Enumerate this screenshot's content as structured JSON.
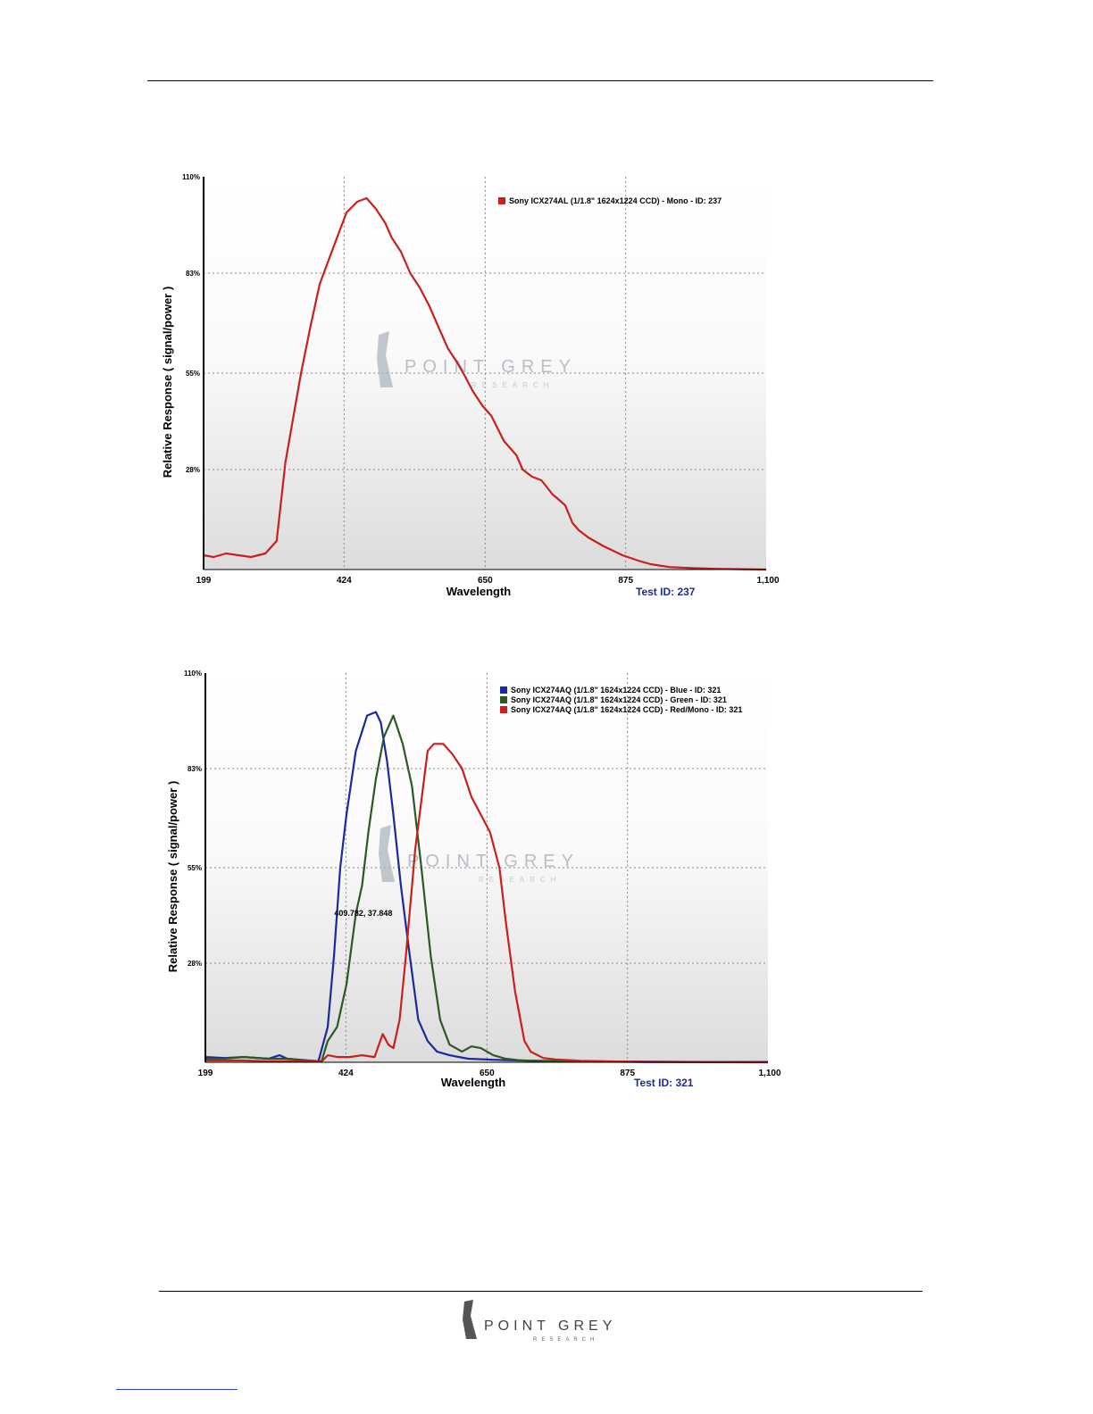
{
  "watermark": {
    "main": "POINT GREY",
    "sub": "RESEARCH"
  },
  "footer": {
    "logo_main": "POINT GREY",
    "logo_sub": "RESEARCH"
  },
  "colors": {
    "red": "#c8201e",
    "blue": "#1a2a9a",
    "green": "#2a5a22",
    "test_id": "#1f2d8c"
  },
  "chart_data": [
    {
      "type": "line",
      "xlabel": "Wavelength",
      "ylabel": "Relative Response ( signal/power )",
      "xlim": [
        199,
        1100
      ],
      "ylim": [
        0,
        110
      ],
      "x_ticks": [
        "199",
        "424",
        "650",
        "875",
        "1,100"
      ],
      "y_ticks": [
        "110%",
        "83%",
        "55%",
        "28%"
      ],
      "test_id_label": "Test ID: 237",
      "legend_position": "top-right",
      "series": [
        {
          "name": "Sony ICX274AL (1/1.8\" 1624x1224 CCD) - Mono - ID: 237",
          "color": "#c8201e",
          "x": [
            199,
            215,
            235,
            275,
            298,
            316,
            330,
            342,
            355,
            370,
            385,
            400,
            415,
            428,
            445,
            460,
            475,
            490,
            500,
            515,
            530,
            545,
            560,
            575,
            590,
            605,
            618,
            630,
            645,
            660,
            680,
            700,
            710,
            725,
            740,
            758,
            765,
            778,
            790,
            800,
            815,
            840,
            870,
            895,
            915,
            945,
            980,
            1020,
            1060,
            1100
          ],
          "y": [
            4,
            3.5,
            4.5,
            3.5,
            4.5,
            8,
            30,
            42,
            55,
            68,
            80,
            87,
            94,
            100,
            103,
            104,
            101,
            97,
            93,
            89,
            83,
            79,
            74,
            68,
            62,
            58,
            54,
            50,
            46,
            43,
            36,
            32,
            28,
            26,
            25,
            21,
            20,
            18,
            13,
            11,
            9,
            6.5,
            4,
            2.5,
            1.5,
            0.7,
            0.4,
            0.2,
            0.1,
            0
          ]
        }
      ]
    },
    {
      "type": "line",
      "xlabel": "Wavelength",
      "ylabel": "Relative Response ( signal/power )",
      "xlim": [
        199,
        1100
      ],
      "ylim": [
        0,
        110
      ],
      "x_ticks": [
        "199",
        "424",
        "650",
        "875",
        "1,100"
      ],
      "y_ticks": [
        "110%",
        "83%",
        "55%",
        "28%"
      ],
      "test_id_label": "Test ID: 321",
      "legend_position": "top-right",
      "annotation": {
        "text": "409.782, 37.848",
        "x": 409.782,
        "y": 37.848
      },
      "series": [
        {
          "name": "Sony ICX274AQ (1/1.8\" 1624x1224 CCD) - Blue  - ID: 321",
          "color": "#1a2a9a",
          "x": [
            199,
            230,
            260,
            300,
            318,
            330,
            380,
            395,
            405,
            415,
            425,
            440,
            458,
            472,
            480,
            490,
            500,
            512,
            525,
            540,
            555,
            570,
            590,
            620,
            660,
            700,
            740,
            800,
            850,
            900,
            1000,
            1100
          ],
          "y": [
            1.5,
            1.2,
            1.5,
            1,
            2,
            1,
            0.3,
            10,
            30,
            55,
            70,
            88,
            98,
            99,
            96,
            85,
            70,
            50,
            32,
            12,
            6,
            3,
            2,
            1,
            0.7,
            0.5,
            0.4,
            0.3,
            0.2,
            0.2,
            0.1,
            0.1
          ]
        },
        {
          "name": "Sony ICX274AQ (1/1.8\" 1624x1224 CCD) - Green  - ID: 321",
          "color": "#2a5a22",
          "x": [
            199,
            230,
            260,
            300,
            330,
            360,
            385,
            395,
            410,
            425,
            440,
            450,
            460,
            472,
            485,
            500,
            515,
            530,
            545,
            560,
            575,
            590,
            610,
            625,
            640,
            660,
            680,
            700,
            720,
            750,
            800,
            900,
            1100
          ],
          "y": [
            1,
            1,
            1.5,
            1,
            1,
            0.5,
            0.3,
            6,
            10,
            22,
            42,
            50,
            65,
            80,
            92,
            98,
            90,
            78,
            55,
            30,
            12,
            5,
            3,
            4.5,
            4,
            2,
            1,
            0.6,
            0.4,
            0.3,
            0.2,
            0.1,
            0
          ]
        },
        {
          "name": "Sony ICX274AQ (1/1.8\" 1624x1224 CCD) - Red/Mono - ID: 321",
          "color": "#c8201e",
          "x": [
            199,
            230,
            260,
            300,
            330,
            360,
            385,
            395,
            410,
            430,
            450,
            470,
            483,
            492,
            500,
            510,
            520,
            535,
            555,
            565,
            580,
            595,
            610,
            625,
            640,
            655,
            670,
            680,
            695,
            710,
            720,
            740,
            760,
            800,
            900,
            1100
          ],
          "y": [
            0.5,
            0.5,
            0.5,
            0.3,
            0.3,
            0.2,
            0.2,
            2,
            1.5,
            1.5,
            2,
            1.5,
            8,
            5,
            4,
            12,
            30,
            60,
            88,
            90,
            90,
            87,
            83,
            75,
            70,
            65,
            55,
            40,
            20,
            6,
            3,
            1.2,
            0.8,
            0.4,
            0.1,
            0
          ]
        }
      ]
    }
  ]
}
